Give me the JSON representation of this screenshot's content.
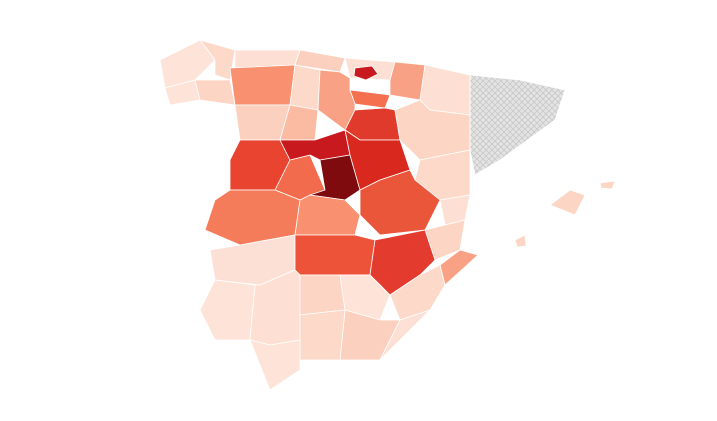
{
  "map": {
    "regions": [
      {
        "color": "#fde3d8"
      },
      {
        "color": "#fdd9c9"
      },
      {
        "color": "#fde3d8"
      },
      {
        "color": "#fcd5c4"
      },
      {
        "color": "#fde0d3"
      },
      {
        "color": "#fcd0bf"
      },
      {
        "color": "#fde0d3"
      },
      {
        "color": "#f9a184"
      },
      {
        "color": "#f4704f"
      },
      {
        "color": "#f9906f"
      },
      {
        "color": "#fdd9c9"
      },
      {
        "color": "#f9a184"
      },
      {
        "color": "#fcd0bf"
      },
      {
        "color": "#fbbba3"
      },
      {
        "color": "#e03a2d"
      },
      {
        "color": "#fde0d3"
      },
      {
        "color": "#fcd5c4"
      },
      {
        "color": "#fdd9c9"
      },
      {
        "color": "#e8442f"
      },
      {
        "color": "#f26b4c"
      },
      {
        "color": "#c8191e"
      },
      {
        "color": "#800b0f"
      },
      {
        "color": "#d9291f"
      },
      {
        "color": "#ea5639"
      },
      {
        "color": "#fde0d3"
      },
      {
        "color": "#fcd5c4"
      },
      {
        "color": "#f9a184"
      },
      {
        "color": "#f47c5a"
      },
      {
        "color": "#f9906f"
      },
      {
        "color": "#fde0d5"
      },
      {
        "color": "#ec5338"
      },
      {
        "color": "#e33b2e"
      },
      {
        "color": "#fdd9c9"
      },
      {
        "color": "#fde3d8"
      },
      {
        "color": "#fde0d3"
      },
      {
        "color": "#fcd5c4"
      },
      {
        "color": "#fde3d8"
      },
      {
        "color": "#fcd0bf"
      },
      {
        "color": "#fde0d5"
      },
      {
        "color": "#fdd9c9"
      },
      {
        "color": "#fde3d8"
      },
      {
        "color": "#fcd5c4"
      },
      {
        "color": "#fcd5c4"
      },
      {
        "color": "#fcd5c4"
      },
      {
        "color": "#c8191e"
      }
    ]
  }
}
